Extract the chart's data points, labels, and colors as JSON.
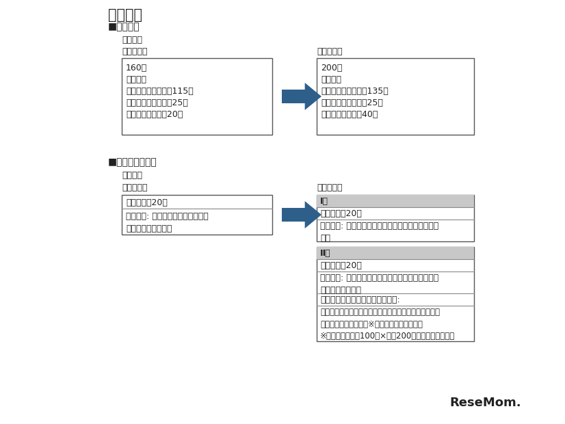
{
  "title": "教養学部",
  "bg_color": "#ffffff",
  "text_color": "#222222",
  "border_color": "#555555",
  "arrow_color": "#2d5f8a",
  "header_bg": "#c8c8c8",
  "section1_header": "■募集人員",
  "section1_subsection": "教養学科",
  "section1_before_label": "【変更前】",
  "section1_after_label": "【変更後】",
  "section1_before_lines": [
    "160名",
    "（内訳）",
    "一般選抜前期日程：115名",
    "一般選抜後期日程：25名",
    "学校推薦型選抜：20名"
  ],
  "section1_after_lines": [
    "200名",
    "（内訳）",
    "一般選抜前期日程：135名",
    "一般選抜後期日程：25名",
    "学校推薦型選抜：40名"
  ],
  "section2_header": "■学校推薦型選抜",
  "section2_subsection": "教養学科",
  "section2_before_label": "【変更前】",
  "section2_after_label": "【変更後】",
  "section2_before_row1": "募集人員　20名",
  "section2_before_row2": "選抜方法: 推薦書、志望の理由、調\n査書、小論文、面接",
  "section2_type1_header": "Ⅰ型",
  "section2_type1_row1": "募集人員　20名",
  "section2_type1_row2": "選抜方法: 推薦書、志望の理由、調査書、小論文、\n面接",
  "section2_type2_header": "Ⅱ型",
  "section2_type2_row1": "募集人員　20名",
  "section2_type2_row2": "選抜方法: 推薦書、志望の理由、調査書、面接、大\n学入学共通テスト",
  "section2_type2_row3": "大学入学共通テストの教科・科目:",
  "section2_type2_row4": "「国語」、「外国語」、「地理歴史及び公民２科目・数\n学２科目・理科１科目※のうち高得点の教科」\n※理科１科目は「100点×２＝200点」に換算します。",
  "resemom_text": "ReseMom."
}
